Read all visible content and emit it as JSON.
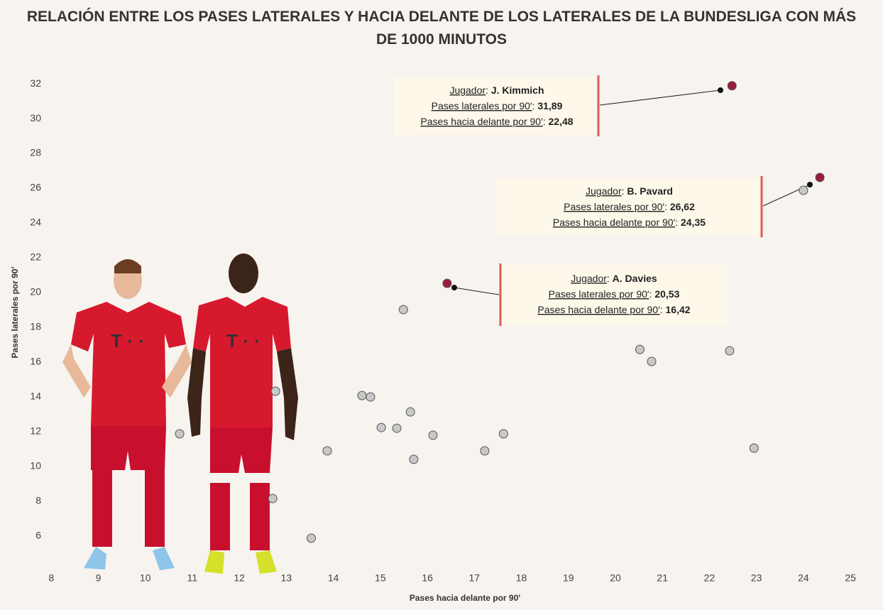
{
  "chart_data": {
    "type": "scatter",
    "title": "RELACIÓN ENTRE LOS PASES LATERALES Y HACIA DELANTE DE LOS LATERALES DE LA BUNDESLIGA CON MÁS DE 1000 MINUTOS",
    "x_label": "Pases hacia delante por 90′",
    "y_label": "Pases laterales por 90′",
    "xlim": [
      7.8,
      25.3
    ],
    "ylim": [
      4.16,
      33.35
    ],
    "xticks": [
      8,
      9,
      10,
      11,
      12,
      13,
      14,
      15,
      16,
      17,
      18,
      19,
      20,
      21,
      22,
      23,
      24,
      25
    ],
    "yticks": [
      6,
      8,
      10,
      12,
      14,
      16,
      18,
      20,
      22,
      24,
      26,
      28,
      30,
      32
    ],
    "grid": false,
    "series": [
      {
        "color": "#c8c8c8",
        "x": [
          24.0,
          15.49,
          20.52,
          20.77,
          22.43,
          12.77,
          14.61,
          14.79,
          15.64,
          15.02,
          15.35,
          16.12,
          17.62,
          10.73,
          13.87,
          17.22,
          15.71,
          22.95,
          12.71,
          13.53
        ],
        "values": [
          25.88,
          19.02,
          16.73,
          16.04,
          16.65,
          14.33,
          14.08,
          14.0,
          13.14,
          12.24,
          12.2,
          11.8,
          11.88,
          11.88,
          10.9,
          10.9,
          10.41,
          11.06,
          8.16,
          5.88
        ]
      },
      {
        "color": "#9b1b3a",
        "x": [
          22.48,
          24.35,
          16.42
        ],
        "values": [
          31.89,
          26.62,
          20.53
        ]
      }
    ],
    "annotations": [
      {
        "k1": "Jugador",
        "v1": "J. Kimmich",
        "k2": "Pases laterales por 90′",
        "v2": "31,89",
        "k3": "Pases hacia delante por 90′",
        "v3": "22,48"
      },
      {
        "k1": "Jugador",
        "v1": "B. Pavard",
        "k2": "Pases laterales por 90′",
        "v2": "26,62",
        "k3": "Pases hacia delante por 90′",
        "v3": "24,35"
      },
      {
        "k1": "Jugador",
        "v1": "A. Davies",
        "k2": "Pases laterales por 90′",
        "v2": "20,53",
        "k3": "Pases hacia delante por 90′",
        "v3": "16,42"
      }
    ]
  }
}
